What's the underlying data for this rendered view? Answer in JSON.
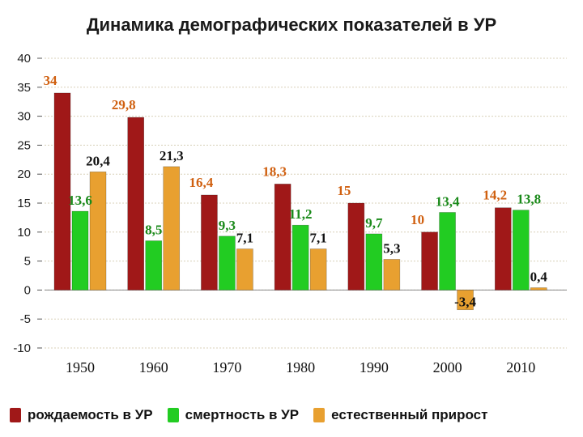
{
  "chart_data": {
    "type": "bar",
    "title": "Динамика демографических показателей в УР",
    "categories": [
      "1950",
      "1960",
      "1970",
      "1980",
      "1990",
      "2000",
      "2010"
    ],
    "series": [
      {
        "name": "рождаемость в УР",
        "color": "#a01818",
        "label_color": "#d06010",
        "values": [
          34,
          29.8,
          16.4,
          18.3,
          15,
          10,
          14.2
        ],
        "labels": [
          "34",
          "29,8",
          "16,4",
          "18,3",
          "15",
          "10",
          "14,2"
        ]
      },
      {
        "name": "смертность в УР",
        "color": "#22cc22",
        "label_color": "#1a8a1a",
        "values": [
          13.6,
          8.5,
          9.3,
          11.2,
          9.7,
          13.4,
          13.8
        ],
        "labels": [
          "13,6",
          "8,5",
          "9,3",
          "11,2",
          "9,7",
          "13,4",
          "13,8"
        ]
      },
      {
        "name": "естественный прирост",
        "color": "#e8a030",
        "label_color": "#111111",
        "values": [
          20.4,
          21.3,
          7.1,
          7.1,
          5.3,
          -3.4,
          0.4
        ],
        "labels": [
          "20,4",
          "21,3",
          "7,1",
          "7,1",
          "5,3",
          "-3,4",
          "0,4"
        ]
      }
    ],
    "ylim": [
      -10,
      40
    ],
    "yticks": [
      "40",
      "35",
      "30",
      "25",
      "20",
      "15",
      "10",
      "5",
      "0",
      "-5",
      "-10"
    ],
    "grid": true,
    "legend": "bottom"
  }
}
